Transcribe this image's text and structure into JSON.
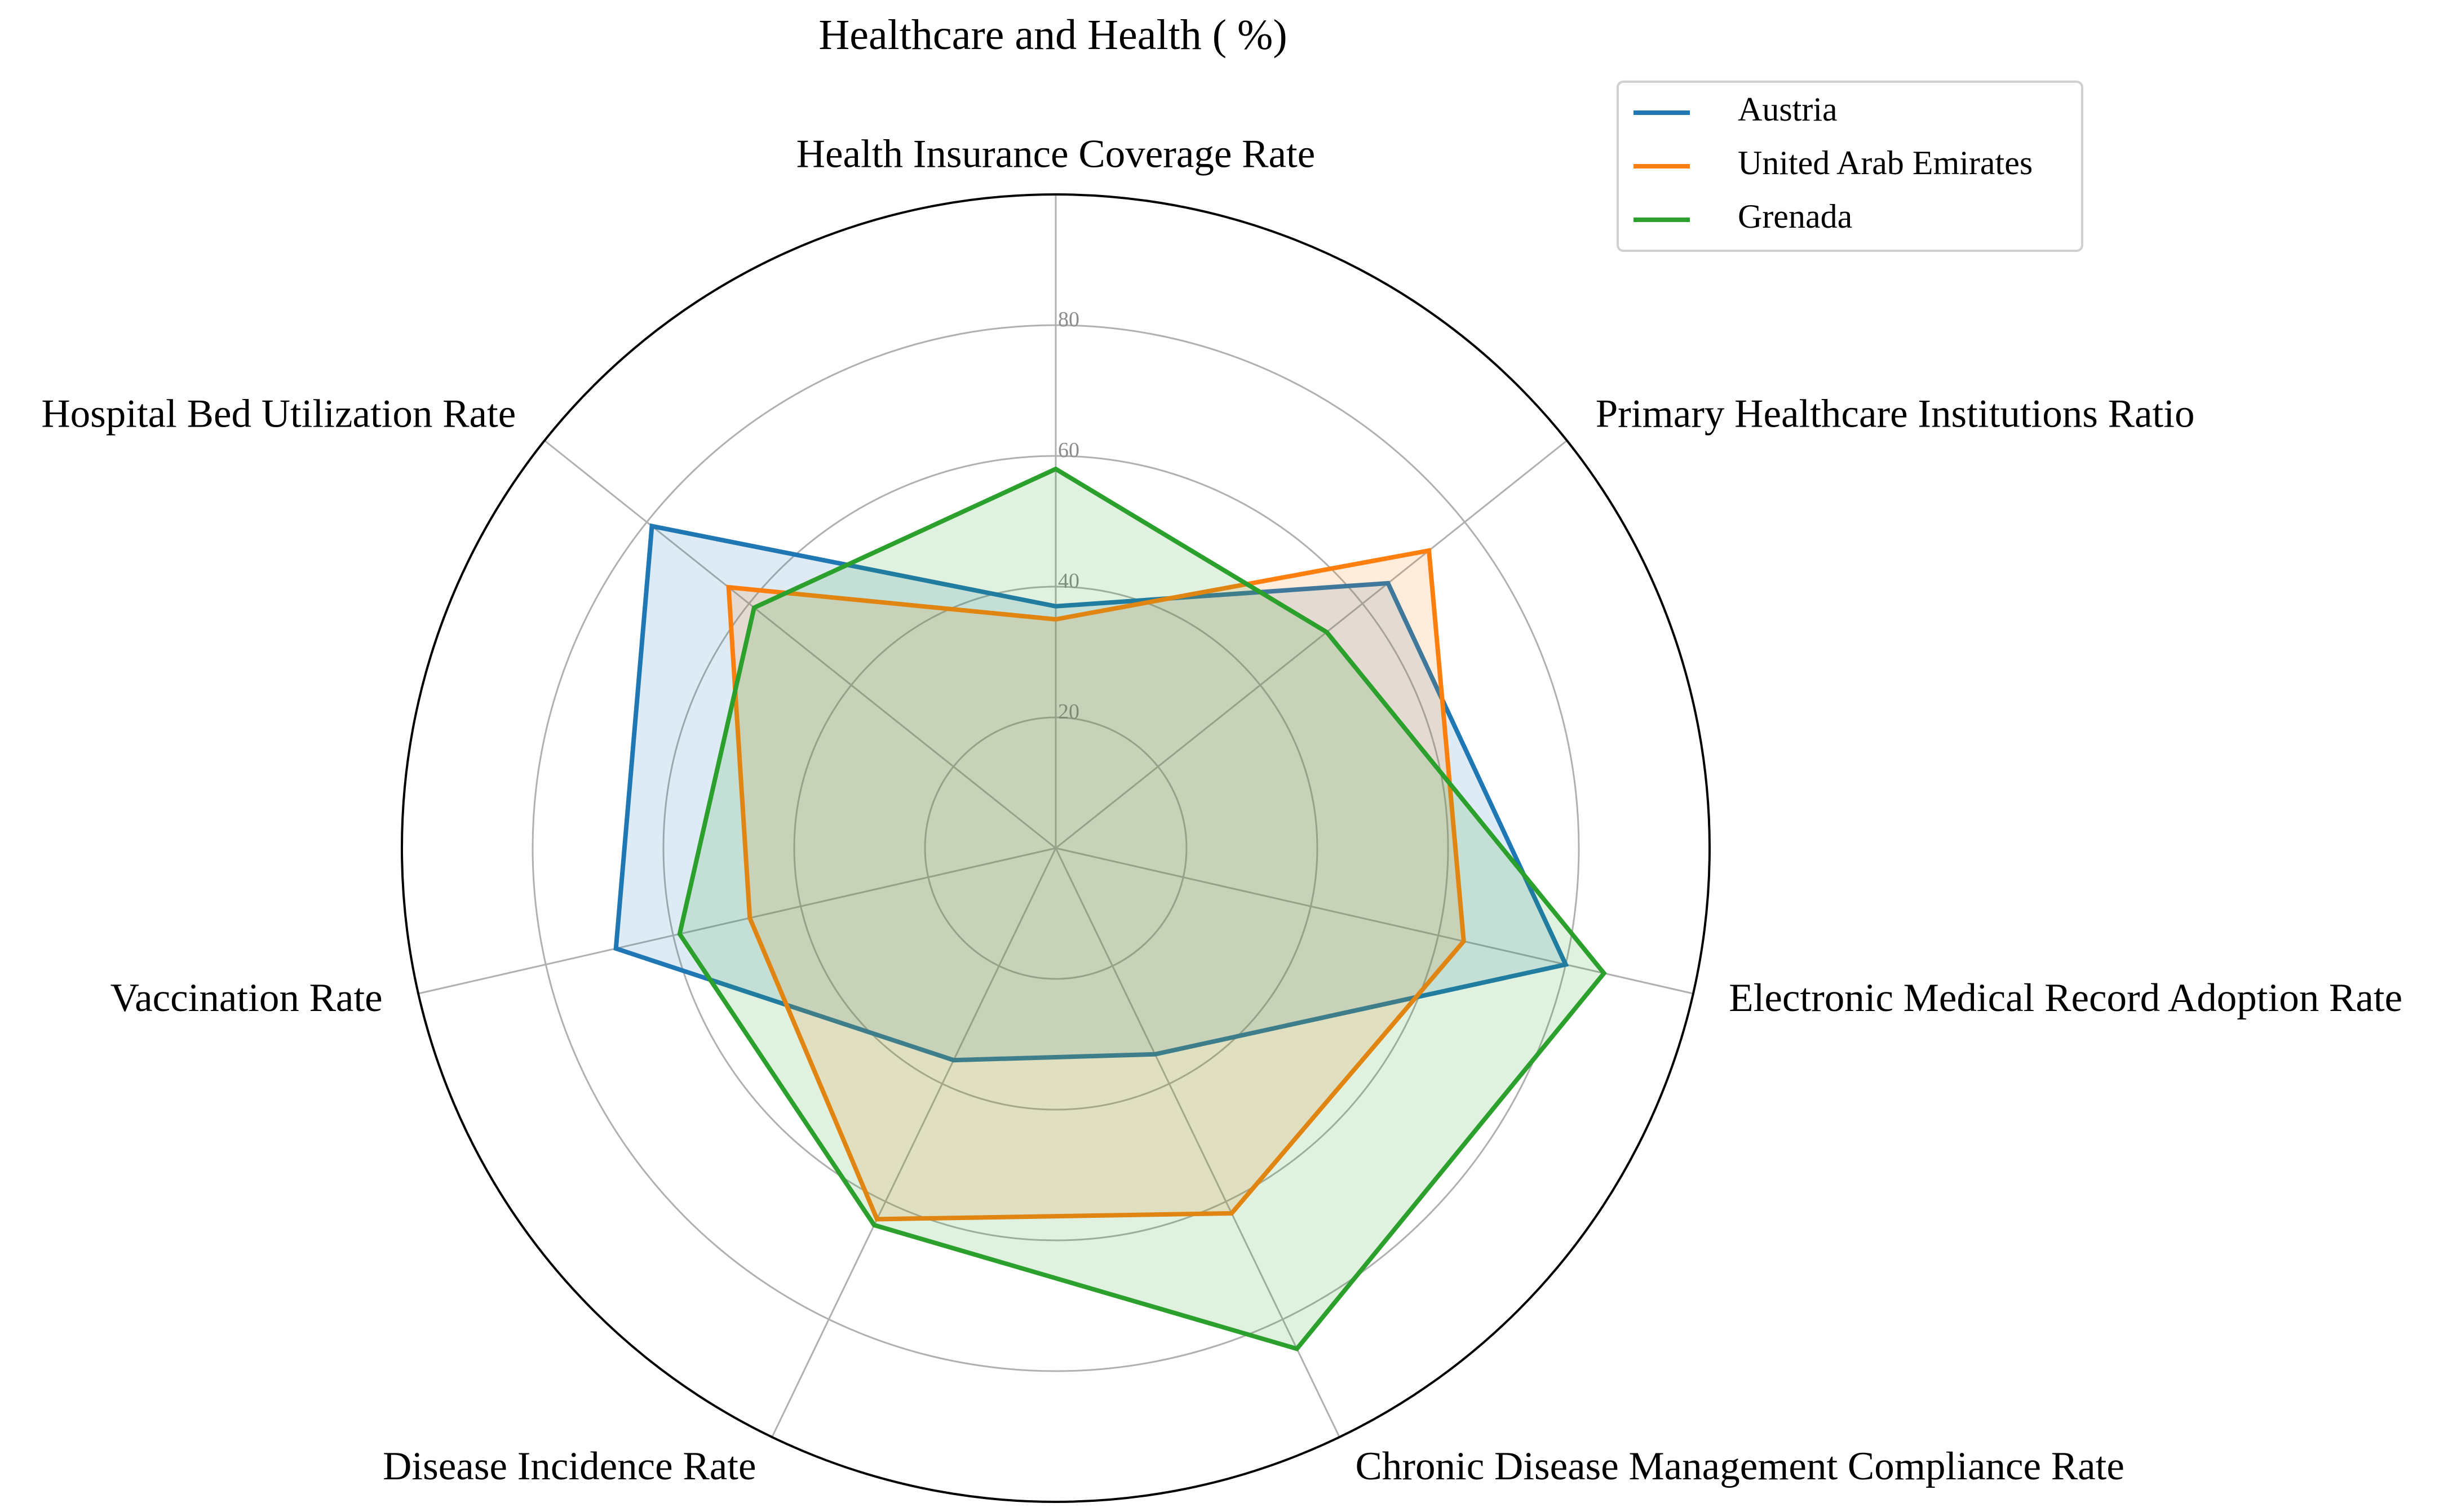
{
  "chart_data": {
    "type": "radar",
    "title": "Healthcare and Health ( %)",
    "categories": [
      "Health Insurance Coverage Rate",
      "Primary Healthcare Institutions Ratio",
      "Electronic Medical Record Adoption Rate",
      "Chronic Disease Management Compliance Rate",
      "Disease Incidence Rate",
      "Vaccination Rate",
      "Hospital Bed Utilization Rate"
    ],
    "radial_ticks": [
      "20",
      "40",
      "60",
      "80"
    ],
    "rlim": [
      0,
      100
    ],
    "grid": true,
    "legend_position": "top-right",
    "series": [
      {
        "name": "Austria",
        "color": "#1f77b4",
        "values": [
          37,
          65,
          80,
          35,
          36,
          69,
          79
        ]
      },
      {
        "name": "United Arab Emirates",
        "color": "#ff7f0e",
        "values": [
          35,
          73,
          64,
          62,
          63,
          48,
          64
        ]
      },
      {
        "name": "Grenada",
        "color": "#2ca02c",
        "values": [
          58,
          53,
          86,
          85,
          64,
          59,
          59
        ]
      }
    ]
  }
}
